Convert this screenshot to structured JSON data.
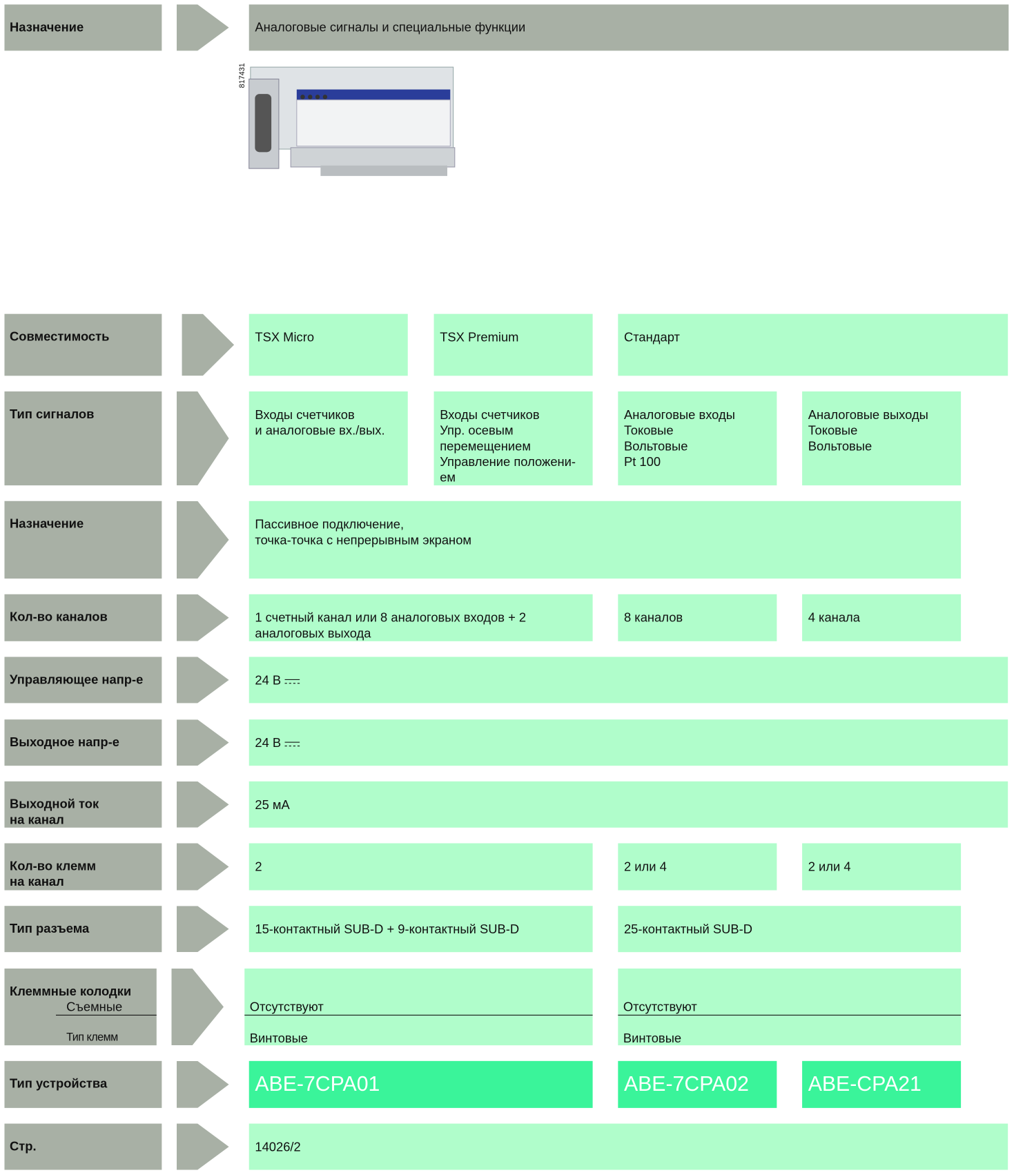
{
  "header": {
    "label": "Назначение",
    "value": "Аналоговые сигналы и специальные функции"
  },
  "image": {
    "caption": "817431"
  },
  "rows": [
    {
      "label": "Совместимость",
      "cells": [
        "TSX Micro",
        "TSX Premium",
        "Стандарт"
      ]
    },
    {
      "label": "Тип сигналов",
      "cells": [
        "Входы счетчиков\nи аналоговые вх./вых.",
        "Входы счетчиков\nУпр. осевым\nперемещением\nУправление положени-\nем",
        "Аналоговые входы\nТоковые\nВольтовые\nPt 100",
        "Аналоговые выходы\nТоковые\nВольтовые"
      ]
    },
    {
      "label": "Назначение",
      "cells": [
        "Пассивное подключение,\nточка-точка с непрерывным экраном"
      ]
    },
    {
      "label": "Кол-во каналов",
      "cells": [
        "1 счетный канал или 8 аналоговых входов + 2\nаналоговых выхода",
        "8 каналов",
        "4 канала"
      ]
    },
    {
      "label": "Управляющее напр-е",
      "cells": [
        "24 В"
      ]
    },
    {
      "label": "Выходное напр-е",
      "cells": [
        "24 В"
      ]
    },
    {
      "label": "Выходной ток\nна канал",
      "cells": [
        "25 мА"
      ]
    },
    {
      "label": "Кол-во клемм\nна канал",
      "cells": [
        "2",
        "2 или 4",
        "2 или 4"
      ]
    },
    {
      "label": "Тип разъема",
      "cells": [
        "15-контактный SUB-D + 9-контактный SUB-D",
        "25-контактный SUB-D"
      ]
    },
    {
      "label": "Клеммные колодки",
      "sublabels": [
        "Съемные",
        "Тип клемм"
      ],
      "cells": [
        [
          "Отсутствуют",
          "Винтовые"
        ],
        [
          "Отсутствуют",
          "Винтовые"
        ]
      ]
    },
    {
      "label": "Тип устройства",
      "cells": [
        "ABE-7CPA01",
        "ABE-7CPA02",
        "ABE-CPA21"
      ]
    },
    {
      "label": "Стр.",
      "cells": [
        "14026/2"
      ]
    }
  ]
}
